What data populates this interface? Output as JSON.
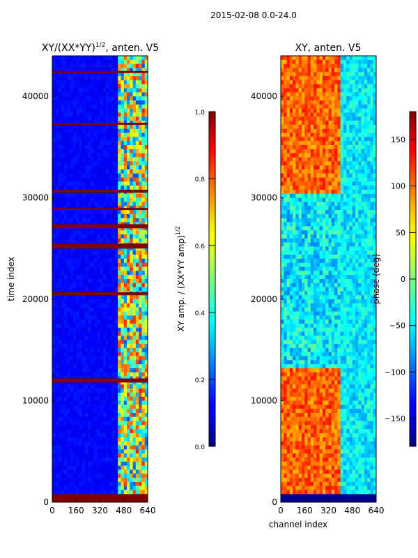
{
  "suptitle": "2015-02-08 0.0-24.0",
  "colormap": "jet",
  "chart_data": [
    {
      "type": "heatmap",
      "title_text": "XY/(XX*YY)",
      "title_sup": "1/2",
      "title_suffix": ", anten. V5",
      "xlabel": "",
      "ylabel": "time index",
      "xlim": [
        0,
        640
      ],
      "ylim": [
        0,
        44000
      ],
      "xticks": [
        0,
        160,
        320,
        480,
        640
      ],
      "yticks": [
        0,
        10000,
        20000,
        30000,
        40000
      ],
      "colorbar": {
        "label_text": "XY amp. / (XX*YY amp)",
        "label_sup": "1/2",
        "range": [
          0.0,
          1.0
        ],
        "ticks": [
          "0.0",
          "0.2",
          "0.4",
          "0.6",
          "0.8",
          "1.0"
        ],
        "tick_values": [
          0.0,
          0.2,
          0.4,
          0.6,
          0.8,
          1.0
        ]
      },
      "description_values": {
        "background_level": 0.1,
        "high_channel_band_start": 440,
        "saturated_row_bands": [
          [
            0,
            800
          ],
          [
            11800,
            12200
          ],
          [
            20400,
            20700
          ],
          [
            25000,
            25500
          ],
          [
            27000,
            27400
          ],
          [
            28800,
            29000
          ],
          [
            30500,
            30800
          ],
          [
            37200,
            37400
          ],
          [
            42300,
            42500
          ]
        ]
      }
    },
    {
      "type": "heatmap",
      "title_text": "XY, anten. V5",
      "xlabel": "channel index",
      "ylabel": "",
      "xlim": [
        0,
        640
      ],
      "ylim": [
        0,
        44000
      ],
      "xticks": [
        0,
        160,
        320,
        480,
        640
      ],
      "yticks": [
        0,
        10000,
        20000,
        30000,
        40000
      ],
      "colorbar": {
        "label_text": "phase (deg)",
        "range": [
          -180,
          180
        ],
        "ticks": [
          "−150",
          "−100",
          "−50",
          "0",
          "50",
          "100",
          "150"
        ],
        "tick_values": [
          -150,
          -100,
          -50,
          0,
          50,
          100,
          150
        ]
      },
      "description_values": {
        "low_band_phase_deg": 100,
        "mid_band_phase_deg": -50,
        "channel_break": 400
      }
    }
  ]
}
